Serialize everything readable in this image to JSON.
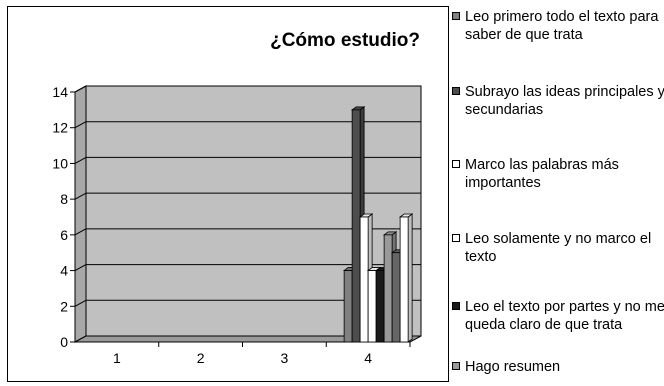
{
  "chart_data": {
    "type": "bar",
    "title": "¿Cómo estudio?",
    "xlabel": "",
    "ylabel": "",
    "categories": [
      "1",
      "2",
      "3",
      "4"
    ],
    "ylim": [
      0,
      14
    ],
    "yticks": [
      "0",
      "2",
      "4",
      "6",
      "8",
      "10",
      "12",
      "14"
    ],
    "grid": true,
    "three_d": true,
    "legend_position": "right",
    "plot_background": "#c0c0c0",
    "series": [
      {
        "name": "Leo primero todo el texto para saber de que trata",
        "color": "#808080",
        "values": [
          null,
          null,
          null,
          4
        ]
      },
      {
        "name": "Subrayo las ideas principales y secundarias",
        "color": "#4d4d4d",
        "values": [
          null,
          null,
          null,
          13
        ]
      },
      {
        "name": "Marco las palabras más importantes",
        "color": "#ffffff",
        "values": [
          null,
          null,
          null,
          7
        ]
      },
      {
        "name": "Leo solamente y no marco el texto",
        "color": "#ffffff",
        "values": [
          null,
          null,
          null,
          4
        ]
      },
      {
        "name": "Leo el texto por partes y no me queda claro de que trata",
        "color": "#1a1a1a",
        "values": [
          null,
          null,
          null,
          4
        ]
      },
      {
        "name": "Hago resumen",
        "color": "#999999",
        "values": [
          null,
          null,
          null,
          6
        ]
      },
      {
        "name": "",
        "color": "#666666",
        "values": [
          null,
          null,
          null,
          5
        ]
      },
      {
        "name": "",
        "color": "#ffffff",
        "values": [
          null,
          null,
          null,
          7
        ]
      }
    ]
  }
}
